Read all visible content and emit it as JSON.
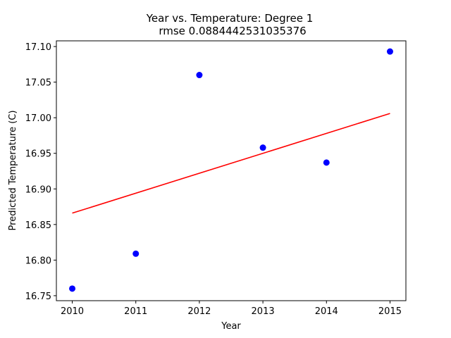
{
  "chart_data": {
    "type": "scatter",
    "title": "Year vs. Temperature: Degree 1",
    "subtitle": "rmse 0.0884442531035376",
    "xlabel": "Year",
    "ylabel": "Predicted Temperature (C)",
    "xlim": [
      2009.75,
      2015.25
    ],
    "ylim": [
      16.743,
      17.108
    ],
    "x_ticks": [
      2010,
      2011,
      2012,
      2013,
      2014,
      2015
    ],
    "x_tick_labels": [
      "2010",
      "2011",
      "2012",
      "2013",
      "2014",
      "2015"
    ],
    "y_ticks": [
      16.75,
      16.8,
      16.85,
      16.9,
      16.95,
      17.0,
      17.05,
      17.1
    ],
    "y_tick_labels": [
      "16.75",
      "16.80",
      "16.85",
      "16.90",
      "16.95",
      "17.00",
      "17.05",
      "17.10"
    ],
    "grid": false,
    "series": [
      {
        "type": "scatter",
        "color": "#0000ff",
        "x": [
          2010,
          2011,
          2012,
          2013,
          2014,
          2015
        ],
        "y": [
          16.76,
          16.809,
          17.06,
          16.958,
          16.937,
          17.093
        ]
      },
      {
        "type": "line",
        "color": "#ff0000",
        "x": [
          2010,
          2015
        ],
        "y": [
          16.866,
          17.006
        ]
      }
    ]
  }
}
